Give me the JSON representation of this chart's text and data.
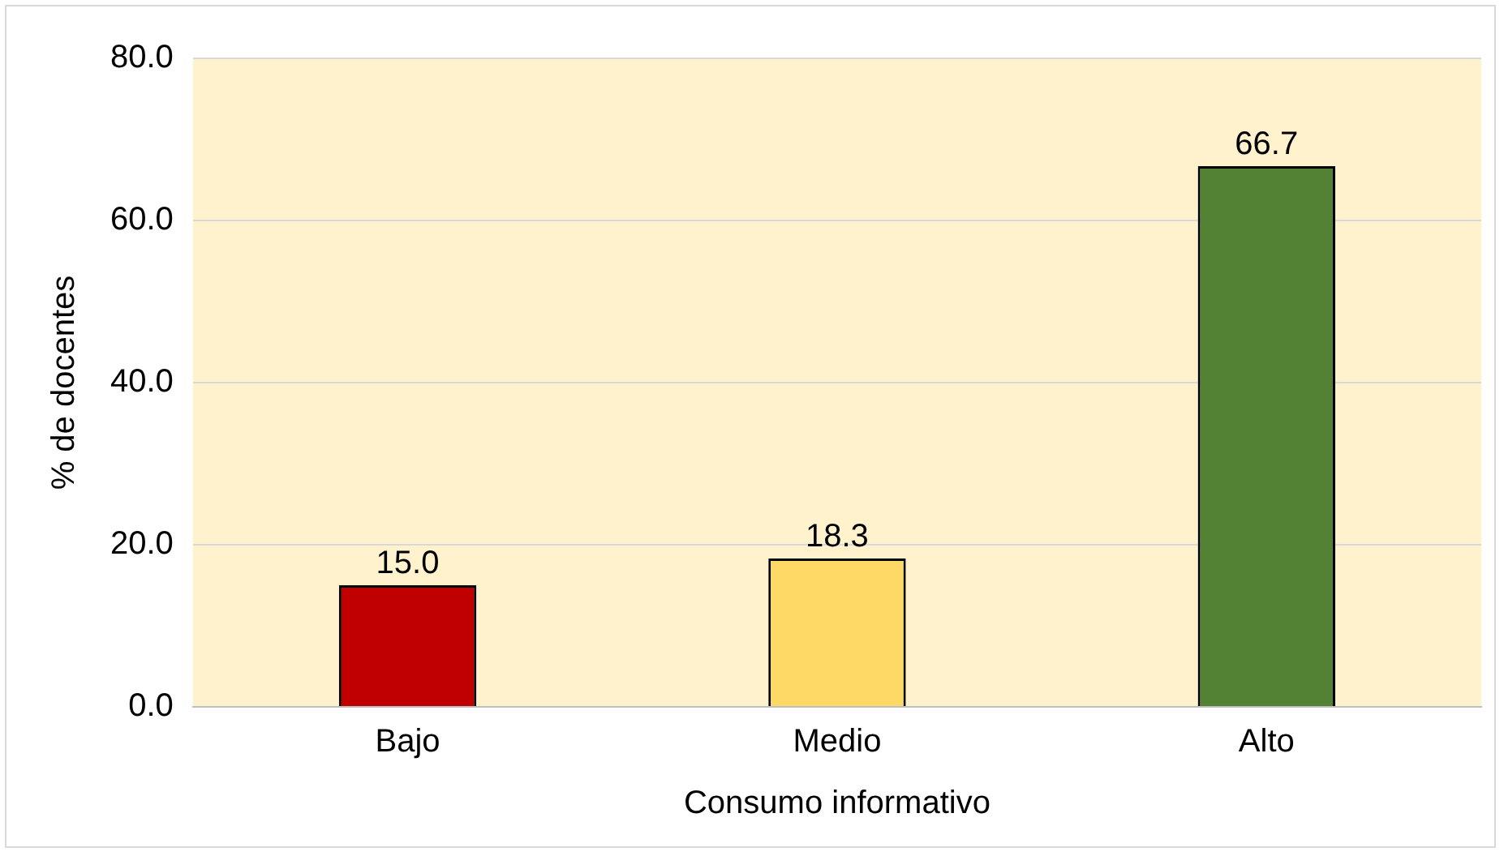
{
  "chart_data": {
    "type": "bar",
    "xlabel": "Consumo informativo",
    "ylabel": "% de docentes",
    "categories": [
      "Bajo",
      "Medio",
      "Alto"
    ],
    "values": [
      15.0,
      18.3,
      66.7
    ],
    "colors": [
      "#c00000",
      "#ffd966",
      "#548235"
    ],
    "ylim": [
      0,
      80
    ],
    "yticks": [
      {
        "value": 0,
        "label": "0.0"
      },
      {
        "value": 20,
        "label": "20.0"
      },
      {
        "value": 40,
        "label": "40.0"
      },
      {
        "value": 60,
        "label": "60.0"
      },
      {
        "value": 80,
        "label": "80.0"
      }
    ],
    "value_labels": [
      "15.0",
      "18.3",
      "66.7"
    ],
    "grid": "y"
  }
}
